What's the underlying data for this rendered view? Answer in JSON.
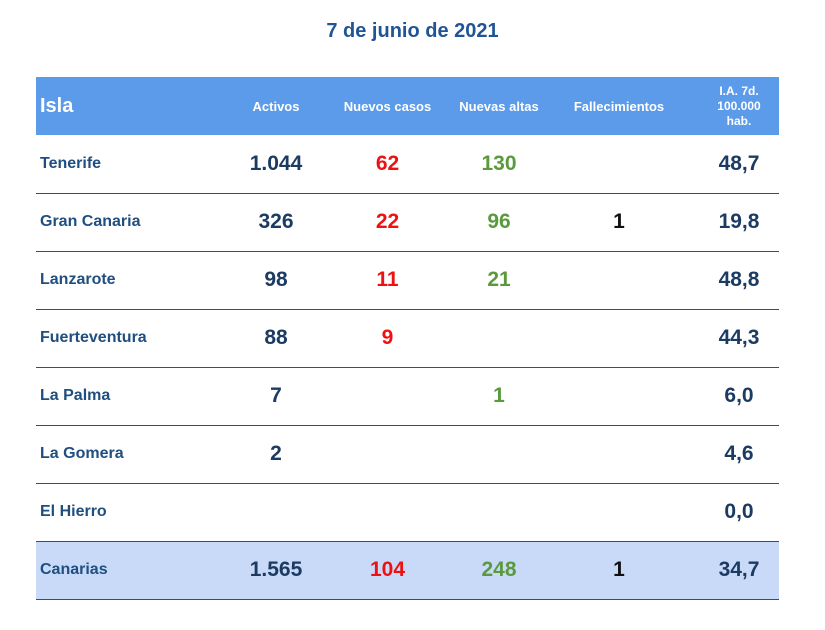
{
  "title": "7 de junio de 2021",
  "columns": {
    "isla": "Isla",
    "activos": "Activos",
    "nuevos": "Nuevos casos",
    "altas": "Nuevas altas",
    "fallecimientos": "Fallecimientos",
    "ia_line1": "I.A. 7d.",
    "ia_line2": "100.000",
    "ia_line3": "hab."
  },
  "rows": [
    {
      "isla": "Tenerife",
      "activos": "1.044",
      "nuevos": "62",
      "altas": "130",
      "fallecimientos": "",
      "ia": "48,7"
    },
    {
      "isla": "Gran Canaria",
      "activos": "326",
      "nuevos": "22",
      "altas": "96",
      "fallecimientos": "1",
      "ia": "19,8"
    },
    {
      "isla": "Lanzarote",
      "activos": "98",
      "nuevos": "11",
      "altas": "21",
      "fallecimientos": "",
      "ia": "48,8"
    },
    {
      "isla": "Fuerteventura",
      "activos": "88",
      "nuevos": "9",
      "altas": "",
      "fallecimientos": "",
      "ia": "44,3"
    },
    {
      "isla": "La Palma",
      "activos": "7",
      "nuevos": "",
      "altas": "1",
      "fallecimientos": "",
      "ia": "6,0"
    },
    {
      "isla": "La Gomera",
      "activos": "2",
      "nuevos": "",
      "altas": "",
      "fallecimientos": "",
      "ia": "4,6"
    },
    {
      "isla": "El Hierro",
      "activos": "",
      "nuevos": "",
      "altas": "",
      "fallecimientos": "",
      "ia": "0,0"
    }
  ],
  "total": {
    "isla": "Canarias",
    "activos": "1.565",
    "nuevos": "104",
    "altas": "248",
    "fallecimientos": "1",
    "ia": "34,7"
  },
  "colors": {
    "header_bg": "#5b9bea",
    "total_bg": "#c9daf8",
    "title": "#1f5597",
    "nuevos": "#ee1111",
    "altas": "#5a9a3c"
  }
}
